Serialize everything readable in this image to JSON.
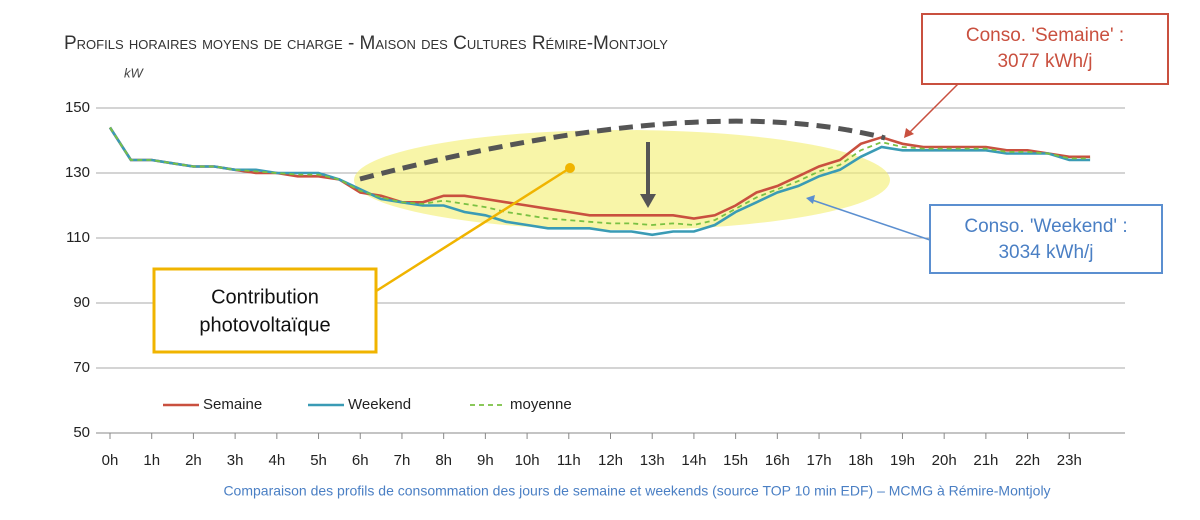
{
  "chart_data": {
    "type": "line",
    "title": "Profils horaires moyens de charge  - Maison des Cultures Rémire-Montjoly",
    "y_unit": "kW",
    "caption": "Comparaison des profils de consommation des jours de semaine et weekends (source TOP 10 min EDF) – MCMG à Rémire-Montjoly",
    "x": [
      0,
      0.5,
      1,
      1.5,
      2,
      2.5,
      3,
      3.5,
      4,
      4.5,
      5,
      5.5,
      6,
      6.5,
      7,
      7.5,
      8,
      8.5,
      9,
      9.5,
      10,
      10.5,
      11,
      11.5,
      12,
      12.5,
      13,
      13.5,
      14,
      14.5,
      15,
      15.5,
      16,
      16.5,
      17,
      17.5,
      18,
      18.5,
      19,
      19.5,
      20,
      20.5,
      21,
      21.5,
      22,
      22.5,
      23,
      23.5
    ],
    "series": [
      {
        "name": "Semaine",
        "color": "#c9503f",
        "style": "solid",
        "values": [
          144,
          134,
          134,
          133,
          132,
          132,
          131,
          130,
          130,
          129,
          129,
          128,
          124,
          123,
          121,
          121,
          123,
          123,
          122,
          121,
          120,
          119,
          118,
          117,
          117,
          117,
          117,
          117,
          116,
          117,
          120,
          124,
          126,
          129,
          132,
          134,
          139,
          141,
          139,
          138,
          138,
          138,
          138,
          137,
          137,
          136,
          135,
          135
        ]
      },
      {
        "name": "Weekend",
        "color": "#3a9bb5",
        "style": "solid",
        "values": [
          144,
          134,
          134,
          133,
          132,
          132,
          131,
          131,
          130,
          130,
          130,
          128,
          125,
          122,
          121,
          120,
          120,
          118,
          117,
          115,
          114,
          113,
          113,
          113,
          112,
          112,
          111,
          112,
          112,
          114,
          118,
          121,
          124,
          126,
          129,
          131,
          135,
          138,
          137,
          137,
          137,
          137,
          137,
          136,
          136,
          136,
          134,
          134
        ]
      },
      {
        "name": "moyenne",
        "color": "#7ac143",
        "style": "dashed",
        "values": [
          144,
          134,
          134,
          133,
          132,
          132,
          131,
          130.5,
          130,
          129.5,
          129.5,
          128,
          124.5,
          122.5,
          121,
          120.5,
          121.5,
          120.5,
          119.5,
          118,
          117,
          116,
          115.5,
          115,
          114.5,
          114.5,
          114,
          114.5,
          114,
          115.5,
          119,
          122.5,
          125,
          127.5,
          130.5,
          132.5,
          137,
          139.5,
          138,
          137.5,
          137.5,
          137.5,
          137.5,
          136.5,
          136.5,
          136,
          134.5,
          134.5
        ]
      }
    ],
    "xlim": [
      0,
      24
    ],
    "xticks": [
      {
        "value": 0,
        "label": "0h"
      },
      {
        "value": 1,
        "label": "1h"
      },
      {
        "value": 2,
        "label": "2h"
      },
      {
        "value": 3,
        "label": "3h"
      },
      {
        "value": 4,
        "label": "4h"
      },
      {
        "value": 5,
        "label": "5h"
      },
      {
        "value": 6,
        "label": "6h"
      },
      {
        "value": 7,
        "label": "7h"
      },
      {
        "value": 8,
        "label": "8h"
      },
      {
        "value": 9,
        "label": "9h"
      },
      {
        "value": 10,
        "label": "10h"
      },
      {
        "value": 11,
        "label": "11h"
      },
      {
        "value": 12,
        "label": "12h"
      },
      {
        "value": 13,
        "label": "13h"
      },
      {
        "value": 14,
        "label": "14h"
      },
      {
        "value": 15,
        "label": "15h"
      },
      {
        "value": 16,
        "label": "16h"
      },
      {
        "value": 17,
        "label": "17h"
      },
      {
        "value": 18,
        "label": "18h"
      },
      {
        "value": 19,
        "label": "19h"
      },
      {
        "value": 20,
        "label": "20h"
      },
      {
        "value": 21,
        "label": "21h"
      },
      {
        "value": 22,
        "label": "22h"
      },
      {
        "value": 23,
        "label": "23h"
      }
    ],
    "ylim": [
      50,
      150
    ],
    "yticks": [
      50,
      70,
      90,
      110,
      130,
      150
    ],
    "grid": true,
    "legend": "lower left",
    "annotations": [
      {
        "lines": [
          "Conso. 'Semaine' :",
          "3077 kWh/j"
        ]
      },
      {
        "lines": [
          "Conso. 'Weekend' :",
          "3034 kWh/j"
        ]
      },
      {
        "lines": [
          "Contribution",
          "photovoltaïque"
        ]
      }
    ]
  }
}
